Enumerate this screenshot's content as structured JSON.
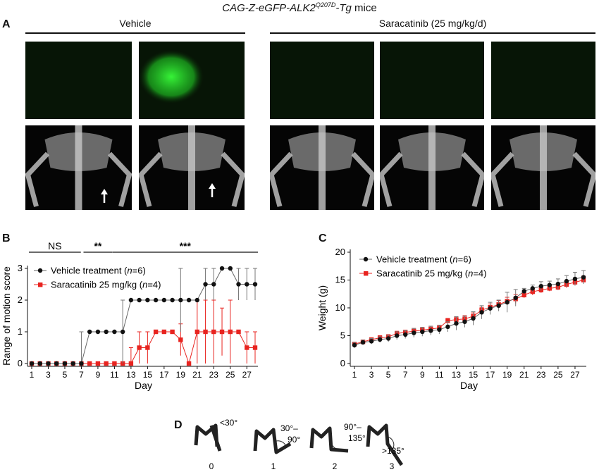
{
  "figure_title": {
    "genotype": "CAG-Z-eGFP-ALK2",
    "superscript": "Q207D",
    "suffix_italic": "-Tg",
    "suffix": " mice"
  },
  "panel_a": {
    "letter": "A",
    "groups": [
      {
        "label": "Vehicle"
      },
      {
        "label": "Saracatinib (25 mg/kg/d)"
      }
    ]
  },
  "panel_b": {
    "letter": "B",
    "significance": [
      "NS",
      "**",
      "***"
    ]
  },
  "panel_c": {
    "letter": "C"
  },
  "panel_d": {
    "letter": "D",
    "scores": [
      "0",
      "1",
      "2",
      "3"
    ],
    "angles": [
      "<30°",
      "30°–",
      "90°",
      "90°–",
      "135°",
      ">135°"
    ]
  },
  "colors": {
    "vehicle": "#111111",
    "saracatinib": "#e8231f",
    "gfp": "#39ff3a"
  },
  "chart_data": [
    {
      "type": "line",
      "ylabel": "Range of motion score",
      "xlabel": "Day",
      "ylim": [
        0,
        3
      ],
      "yticks": [
        "0",
        "1",
        "2",
        "3"
      ],
      "xticks": [
        "1",
        "3",
        "5",
        "7",
        "9",
        "11",
        "13",
        "15",
        "17",
        "19",
        "21",
        "23",
        "25",
        "27"
      ],
      "legend_placement": "top-left",
      "x": [
        1,
        2,
        3,
        4,
        5,
        6,
        7,
        8,
        9,
        10,
        11,
        12,
        13,
        14,
        15,
        16,
        17,
        18,
        19,
        20,
        21,
        22,
        23,
        24,
        25,
        26,
        27,
        28
      ],
      "series": [
        {
          "name": "Vehicle treatment",
          "n": "6",
          "values": [
            0,
            0,
            0,
            0,
            0,
            0,
            0,
            1,
            1,
            1,
            1,
            1,
            2,
            2,
            2,
            2,
            2,
            2,
            2,
            2,
            2,
            2.5,
            2.5,
            3,
            3,
            2.5,
            2.5,
            2.5
          ],
          "err": [
            0,
            0,
            0,
            0,
            0,
            0,
            1,
            0,
            0,
            0,
            0,
            1,
            0,
            0,
            0,
            0,
            0,
            0,
            1,
            0,
            0,
            0.5,
            0.5,
            0,
            0,
            0.5,
            0.5,
            0.5
          ]
        },
        {
          "name": "Saracatinib 25 mg/kg",
          "n": "4",
          "values": [
            0,
            0,
            0,
            0,
            0,
            0,
            0,
            0,
            0,
            0,
            0,
            0,
            0,
            0.5,
            0.5,
            1,
            1,
            1,
            0.75,
            0,
            1,
            1,
            1,
            1,
            1,
            1,
            0.5,
            0.5
          ],
          "err": [
            0,
            0,
            0,
            0,
            0,
            0,
            0,
            0,
            0,
            0,
            0,
            0,
            0.5,
            0.5,
            0.5,
            0,
            0,
            0,
            0.5,
            0,
            1,
            1,
            1,
            0.75,
            1,
            0,
            0.5,
            0.5
          ]
        }
      ]
    },
    {
      "type": "line",
      "ylabel": "Weight (g)",
      "xlabel": "Day",
      "ylim": [
        0,
        20
      ],
      "yticks": [
        "0",
        "5",
        "10",
        "15",
        "20"
      ],
      "xticks": [
        "1",
        "3",
        "5",
        "7",
        "9",
        "11",
        "13",
        "15",
        "17",
        "19",
        "21",
        "23",
        "25",
        "27"
      ],
      "legend_placement": "top-left",
      "x": [
        1,
        2,
        3,
        4,
        5,
        6,
        7,
        8,
        9,
        10,
        11,
        12,
        13,
        14,
        15,
        16,
        17,
        18,
        19,
        20,
        21,
        22,
        23,
        24,
        25,
        26,
        27,
        28
      ],
      "series": [
        {
          "name": "Vehicle treatment",
          "n": "6",
          "values": [
            3.3,
            3.8,
            4.0,
            4.3,
            4.5,
            5.0,
            5.2,
            5.5,
            5.7,
            5.9,
            6.1,
            6.6,
            7.2,
            7.5,
            8.1,
            9.2,
            9.9,
            10.4,
            11.0,
            11.8,
            13.0,
            13.5,
            13.9,
            14.1,
            14.3,
            14.8,
            15.2,
            15.5
          ],
          "err": [
            0.5,
            0.4,
            0.5,
            0.5,
            0.6,
            0.7,
            0.7,
            0.8,
            0.8,
            0.8,
            0.8,
            0.9,
            1.2,
            1.0,
            1.2,
            1.2,
            1.1,
            1.0,
            1.8,
            1.5,
            0.5,
            0.6,
            0.8,
            0.7,
            0.9,
            1.0,
            1.2,
            1.2
          ]
        },
        {
          "name": "Saracatinib 25 mg/kg",
          "n": "4",
          "values": [
            3.5,
            3.9,
            4.3,
            4.6,
            4.8,
            5.4,
            5.6,
            5.8,
            6.0,
            6.2,
            6.4,
            7.7,
            7.9,
            8.0,
            8.5,
            9.6,
            10.1,
            10.6,
            11.2,
            11.6,
            12.3,
            12.9,
            13.2,
            13.5,
            13.7,
            14.2,
            14.6,
            15.0
          ],
          "err": [
            0.3,
            0.3,
            0.3,
            0.4,
            0.4,
            0.4,
            0.4,
            0.5,
            0.5,
            0.5,
            0.5,
            0.4,
            0.5,
            0.6,
            0.6,
            0.5,
            0.6,
            0.7,
            0.7,
            0.8,
            0.5,
            0.6,
            0.5,
            0.5,
            0.5,
            0.6,
            0.6,
            0.7
          ]
        }
      ]
    }
  ]
}
